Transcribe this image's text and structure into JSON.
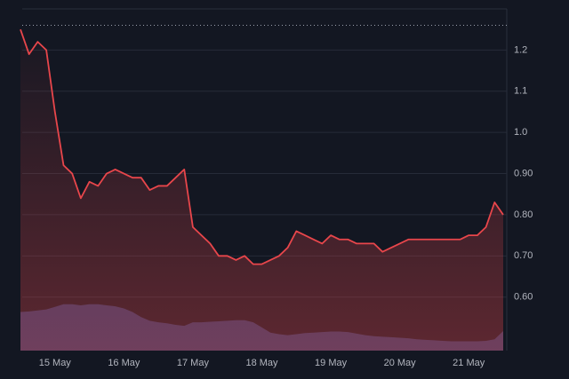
{
  "chart_data": {
    "type": "line",
    "categories": [
      null,
      null,
      null,
      null,
      "15 May",
      null,
      null,
      null,
      null,
      null,
      null,
      null,
      "16 May",
      null,
      null,
      null,
      null,
      null,
      null,
      null,
      "17 May",
      null,
      null,
      null,
      null,
      null,
      null,
      null,
      "18 May",
      null,
      null,
      null,
      null,
      null,
      null,
      null,
      "19 May",
      null,
      null,
      null,
      null,
      null,
      null,
      null,
      "20 May",
      null,
      null,
      null,
      null,
      null,
      null,
      null,
      "21 May",
      null,
      null,
      null,
      null
    ],
    "values": [
      1.25,
      1.19,
      1.22,
      1.2,
      1.05,
      0.92,
      0.9,
      0.84,
      0.88,
      0.87,
      0.9,
      0.91,
      0.9,
      0.89,
      0.89,
      0.86,
      0.87,
      0.87,
      0.89,
      0.91,
      0.77,
      0.75,
      0.73,
      0.7,
      0.7,
      0.69,
      0.7,
      0.68,
      0.68,
      0.69,
      0.7,
      0.72,
      0.76,
      0.75,
      0.74,
      0.73,
      0.75,
      0.74,
      0.74,
      0.73,
      0.73,
      0.73,
      0.71,
      0.72,
      0.73,
      0.74,
      0.74,
      0.74,
      0.74,
      0.74,
      0.74,
      0.74,
      0.75,
      0.75,
      0.77,
      0.83,
      0.8
    ],
    "color": "#e8464b",
    "volume": [
      75,
      76,
      78,
      80,
      85,
      90,
      90,
      88,
      90,
      90,
      88,
      86,
      82,
      75,
      65,
      58,
      55,
      53,
      50,
      48,
      55,
      55,
      56,
      57,
      58,
      59,
      59,
      55,
      45,
      35,
      32,
      30,
      32,
      34,
      35,
      36,
      37,
      37,
      36,
      33,
      30,
      28,
      27,
      26,
      25,
      24,
      22,
      21,
      20,
      19,
      18,
      18,
      18,
      18,
      19,
      22,
      38
    ],
    "volume_color": "#2e3b66",
    "ylim": [
      0.47,
      1.3
    ],
    "yticks": [
      {
        "value": 0.6,
        "label": "0.60"
      },
      {
        "value": 0.7,
        "label": "0.70"
      },
      {
        "value": 0.8,
        "label": "0.80"
      },
      {
        "value": 0.9,
        "label": "0.90"
      },
      {
        "value": 1.0,
        "label": "1.0"
      },
      1.1,
      1.2
    ],
    "reference_line": 1.26,
    "grid": true
  }
}
